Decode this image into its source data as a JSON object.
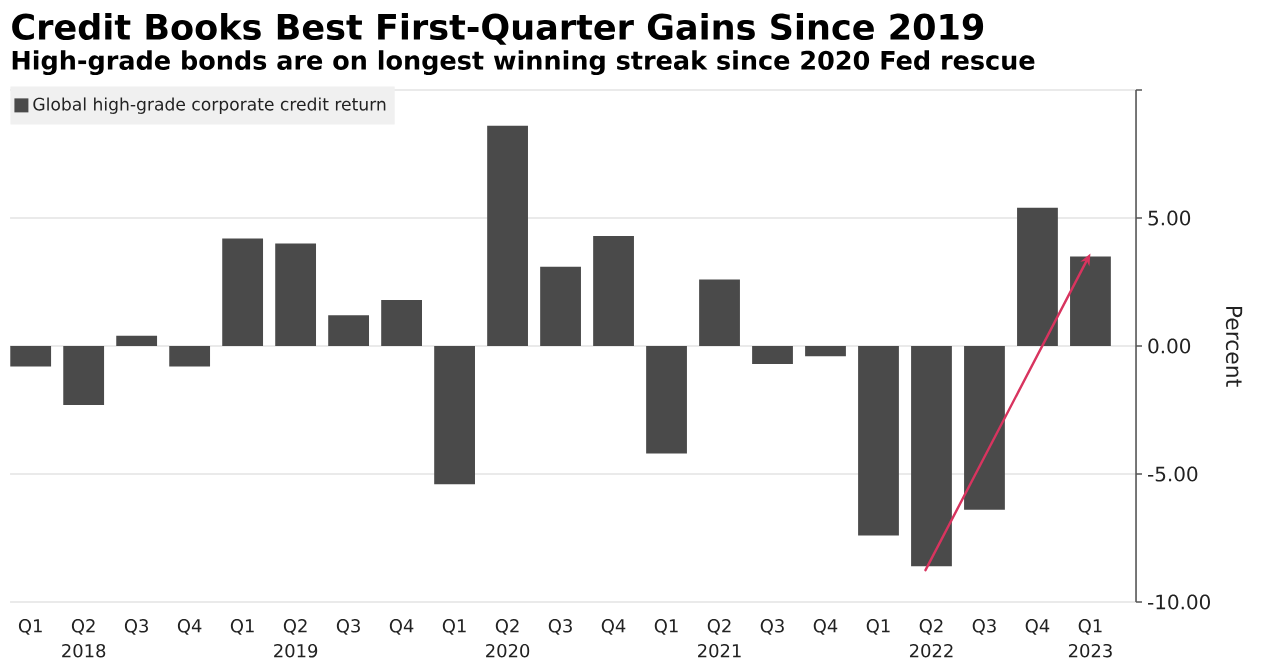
{
  "chart_data": {
    "type": "bar",
    "title": "Credit Books Best First-Quarter Gains Since 2019",
    "subtitle": "High-grade bonds are on longest winning streak since 2020 Fed rescue",
    "ylabel": "Percent",
    "categories": [
      "Q1",
      "Q2 2018",
      "Q3",
      "Q4",
      "Q1",
      "Q2 2019",
      "Q3",
      "Q4",
      "Q1",
      "Q2 2020",
      "Q3",
      "Q4",
      "Q1",
      "Q2 2021",
      "Q3",
      "Q4",
      "Q1",
      "Q2 2022",
      "Q3",
      "Q4",
      "Q1 2023"
    ],
    "series": [
      {
        "name": "Global high-grade corporate credit return",
        "color": "#4a4a4a",
        "values": [
          -0.8,
          -2.3,
          0.4,
          -0.8,
          4.2,
          4.0,
          1.2,
          1.8,
          -5.4,
          8.6,
          3.1,
          4.3,
          -4.2,
          2.6,
          -0.7,
          -0.4,
          -7.4,
          -8.6,
          -6.4,
          5.4,
          3.5
        ]
      }
    ],
    "ylim": [
      -10,
      10
    ],
    "yticks": [
      {
        "value": -10,
        "label": "-10.00"
      },
      {
        "value": -5,
        "label": "-5.00"
      },
      {
        "value": 0,
        "label": "0.00"
      },
      {
        "value": 5,
        "label": "5.00"
      },
      {
        "value": 10,
        "label": null
      }
    ],
    "grid": "y",
    "legend": "top left"
  }
}
